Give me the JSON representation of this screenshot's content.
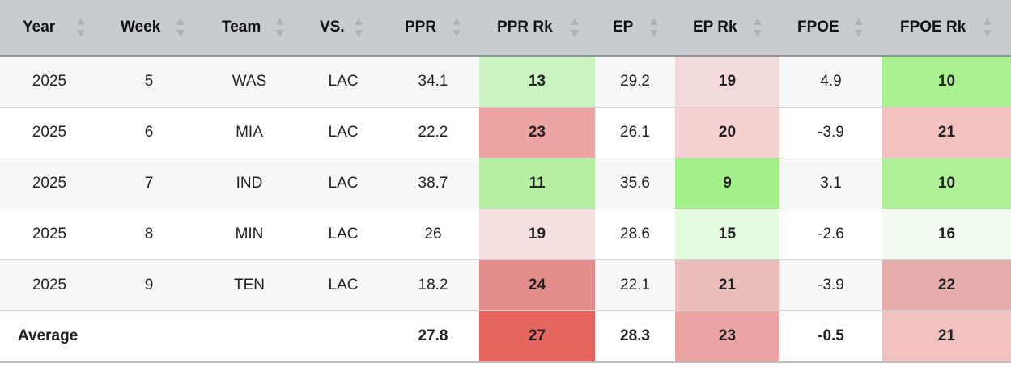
{
  "table": {
    "headers": [
      "Year",
      "Week",
      "Team",
      "VS.",
      "PPR",
      "PPR Rk",
      "EP",
      "EP Rk",
      "FPOE",
      "FPOE Rk"
    ],
    "rows": [
      {
        "year": "2025",
        "week": "5",
        "team": "WAS",
        "vs": "LAC",
        "ppr": "34.1",
        "ppr_rk": "13",
        "ep": "29.2",
        "ep_rk": "19",
        "fpoe": "4.9",
        "fpoe_rk": "10"
      },
      {
        "year": "2025",
        "week": "6",
        "team": "MIA",
        "vs": "LAC",
        "ppr": "22.2",
        "ppr_rk": "23",
        "ep": "26.1",
        "ep_rk": "20",
        "fpoe": "-3.9",
        "fpoe_rk": "21"
      },
      {
        "year": "2025",
        "week": "7",
        "team": "IND",
        "vs": "LAC",
        "ppr": "38.7",
        "ppr_rk": "11",
        "ep": "35.6",
        "ep_rk": "9",
        "fpoe": "3.1",
        "fpoe_rk": "10"
      },
      {
        "year": "2025",
        "week": "8",
        "team": "MIN",
        "vs": "LAC",
        "ppr": "26",
        "ppr_rk": "19",
        "ep": "28.6",
        "ep_rk": "15",
        "fpoe": "-2.6",
        "fpoe_rk": "16"
      },
      {
        "year": "2025",
        "week": "9",
        "team": "TEN",
        "vs": "LAC",
        "ppr": "18.2",
        "ppr_rk": "24",
        "ep": "22.1",
        "ep_rk": "21",
        "fpoe": "-3.9",
        "fpoe_rk": "22"
      }
    ],
    "average": {
      "label": "Average",
      "ppr": "27.8",
      "ppr_rk": "27",
      "ep": "28.3",
      "ep_rk": "23",
      "fpoe": "-0.5",
      "fpoe_rk": "21"
    }
  },
  "colors": {
    "header_bg": "#c8ccd0",
    "row_odd_bg": "#f8f8f8",
    "row_even_bg": "#ffffff",
    "rank_cells": {
      "rows": [
        {
          "ppr_rk": "#ccf3c2",
          "ep_rk": "#f3dada",
          "fpoe_rk": "#a9f28f"
        },
        {
          "ppr_rk": "#eca5a3",
          "ep_rk": "#f4d0d0",
          "fpoe_rk": "#f3c2c1"
        },
        {
          "ppr_rk": "#b5f0a1",
          "ep_rk": "#a4f088",
          "fpoe_rk": "#b0f099"
        },
        {
          "ppr_rk": "#f8e0e0",
          "ep_rk": "#e5fbdf",
          "fpoe_rk": "#f3fcf1"
        },
        {
          "ppr_rk": "#e38e8c",
          "ep_rk": "#ebbebd",
          "fpoe_rk": "#e7adac"
        }
      ],
      "average": {
        "ppr_rk": "#e5665f",
        "ep_rk": "#eba4a3",
        "fpoe_rk": "#f2c1c1"
      }
    }
  },
  "icons": {
    "sort": "sort-up-down-icon"
  }
}
